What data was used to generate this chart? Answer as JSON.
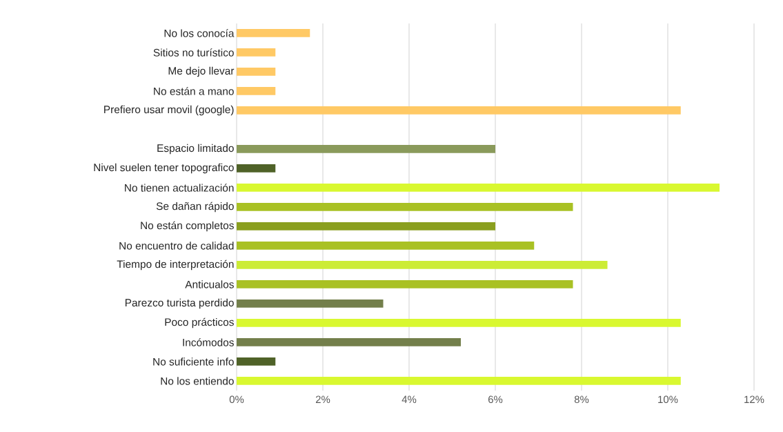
{
  "chart_data": {
    "type": "bar",
    "orientation": "horizontal",
    "categories": [
      "No  los conocía",
      "Sitios no turístico",
      "Me dejo llevar",
      "No están a mano",
      "Prefiero usar movil (google)",
      null,
      "Espacio limitado",
      "Nivel suelen tener topografico",
      "No tienen actualización",
      "Se dañan rápido",
      "No  están completos",
      "No encuentro de calidad",
      "Tiempo de interpretación",
      "Anticualos",
      "Parezco turista perdido",
      "Poco prácticos",
      "Incómodos",
      "No suficiente info",
      "No los entiendo"
    ],
    "values": [
      1.7,
      0.9,
      0.9,
      0.9,
      10.3,
      null,
      6.0,
      0.9,
      11.2,
      7.8,
      6.0,
      6.9,
      8.6,
      7.8,
      3.4,
      10.3,
      5.2,
      0.9,
      10.3
    ],
    "colors": [
      "#ffc965",
      "#ffc965",
      "#ffc965",
      "#ffc965",
      "#ffc965",
      "#ffc965",
      "#8a9a5b",
      "#4f6228",
      "#d9f830",
      "#a9c124",
      "#8a9f1f",
      "#a9c124",
      "#ccec35",
      "#a9c124",
      "#737f4b",
      "#d9f830",
      "#737f4b",
      "#4f6228",
      "#d9f830"
    ],
    "xlim": [
      0,
      12
    ],
    "xticks": [
      {
        "value": 0,
        "label": "0%"
      },
      {
        "value": 2,
        "label": "2%"
      },
      {
        "value": 4,
        "label": "4%"
      },
      {
        "value": 6,
        "label": "6%"
      },
      {
        "value": 8,
        "label": "8%"
      },
      {
        "value": 10,
        "label": "10%"
      },
      {
        "value": 12,
        "label": "12%"
      }
    ],
    "grid": "x",
    "legend": false
  }
}
